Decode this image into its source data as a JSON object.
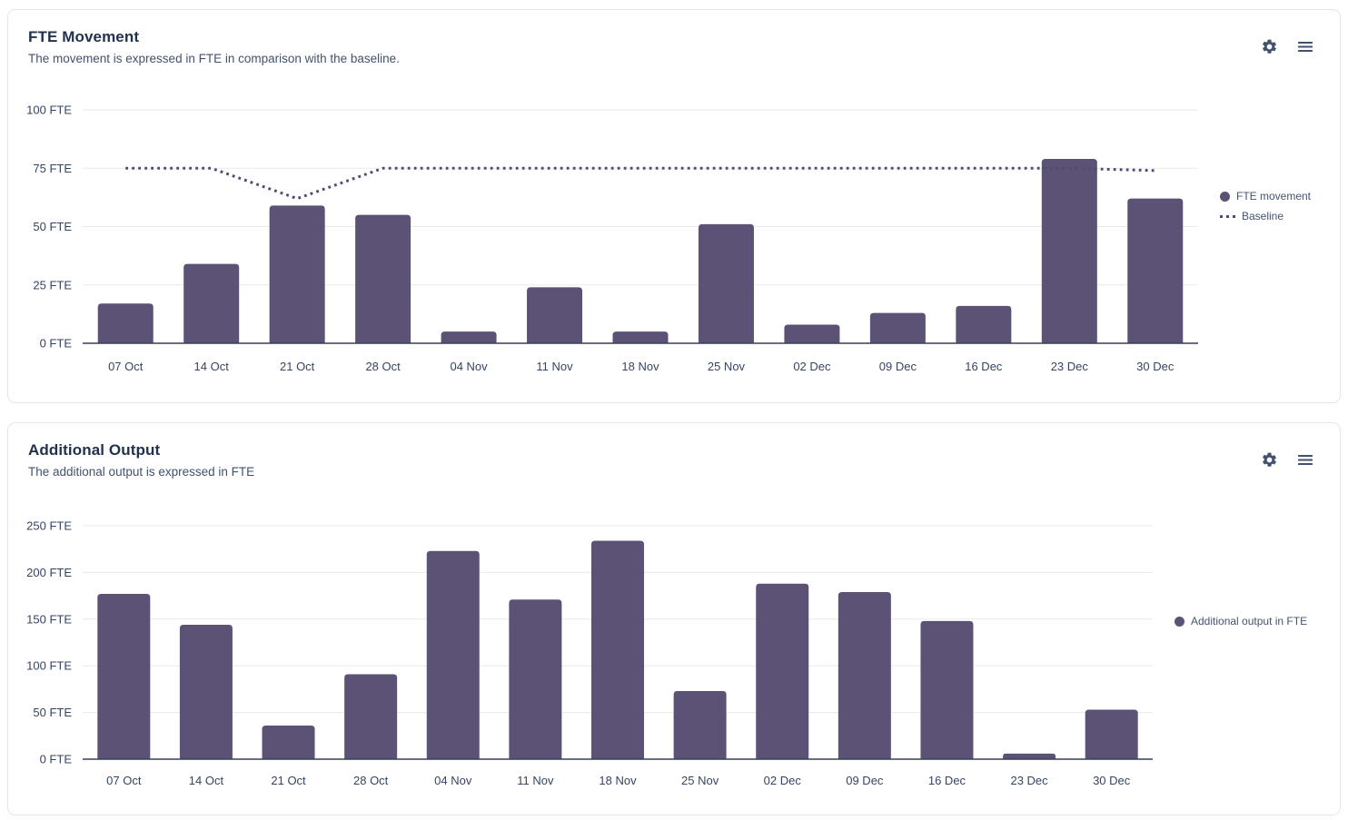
{
  "cards": [
    {
      "title": "FTE Movement",
      "subtitle": "The movement is expressed in FTE in comparison with the baseline.",
      "legend": [
        {
          "label": "FTE movement",
          "marker": "dot"
        },
        {
          "label": "Baseline",
          "marker": "dotted-line"
        }
      ]
    },
    {
      "title": "Additional Output",
      "subtitle": "The additional output is expressed in FTE",
      "legend": [
        {
          "label": "Additional output in FTE",
          "marker": "dot"
        }
      ]
    }
  ],
  "chart_data": [
    {
      "type": "bar",
      "title": "FTE Movement",
      "categories": [
        "07 Oct",
        "14 Oct",
        "21 Oct",
        "28 Oct",
        "04 Nov",
        "11 Nov",
        "18 Nov",
        "25 Nov",
        "02 Dec",
        "09 Dec",
        "16 Dec",
        "23 Dec",
        "30 Dec"
      ],
      "series": [
        {
          "name": "FTE movement",
          "type": "bar",
          "values": [
            17,
            34,
            59,
            55,
            5,
            24,
            5,
            51,
            8,
            13,
            16,
            79,
            62
          ]
        },
        {
          "name": "Baseline",
          "type": "dotted-line",
          "values": [
            75,
            75,
            62,
            75,
            75,
            75,
            75,
            75,
            75,
            75,
            75,
            75,
            74
          ]
        }
      ],
      "ylim": [
        0,
        100
      ],
      "yticks": [
        0,
        25,
        50,
        75,
        100
      ],
      "ytick_suffix": " FTE",
      "grid": true,
      "legend_position": "right"
    },
    {
      "type": "bar",
      "title": "Additional Output",
      "categories": [
        "07 Oct",
        "14 Oct",
        "21 Oct",
        "28 Oct",
        "04 Nov",
        "11 Nov",
        "18 Nov",
        "25 Nov",
        "02 Dec",
        "09 Dec",
        "16 Dec",
        "23 Dec",
        "30 Dec"
      ],
      "series": [
        {
          "name": "Additional output in FTE",
          "type": "bar",
          "values": [
            177,
            144,
            36,
            91,
            223,
            171,
            234,
            73,
            188,
            179,
            148,
            6,
            53
          ]
        }
      ],
      "ylim": [
        0,
        250
      ],
      "yticks": [
        0,
        50,
        100,
        150,
        200,
        250
      ],
      "ytick_suffix": " FTE",
      "grid": true,
      "legend_position": "right"
    }
  ],
  "colors": {
    "bar": "#5b5275",
    "baseline": "#504b73",
    "axis_text": "#344563",
    "grid_line": "#e9eaec",
    "axis_line": "#39415a",
    "icon": "#42526e"
  }
}
